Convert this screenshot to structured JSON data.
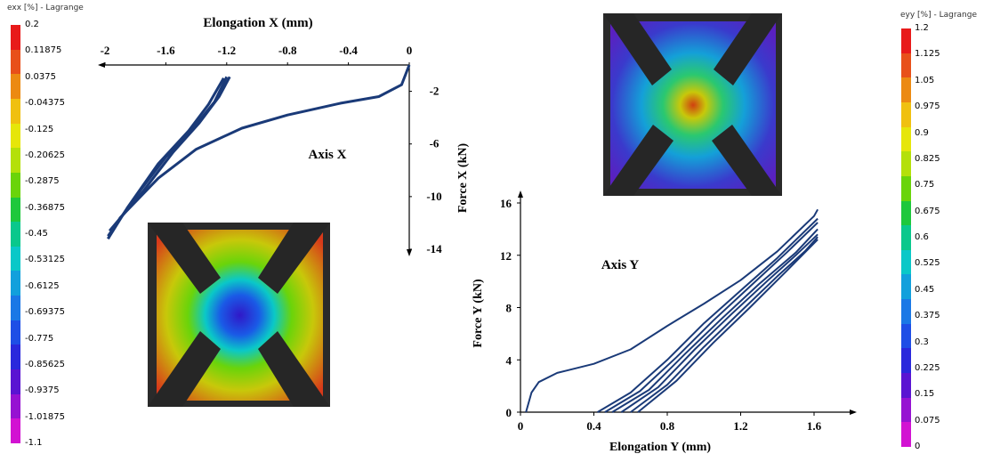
{
  "colorbar_left": {
    "title": "exx [%] - Lagrange",
    "ticks": [
      "0.2",
      "0.11875",
      "0.0375",
      "-0.04375",
      "-0.125",
      "-0.20625",
      "-0.2875",
      "-0.36875",
      "-0.45",
      "-0.53125",
      "-0.6125",
      "-0.69375",
      "-0.775",
      "-0.85625",
      "-0.9375",
      "-1.01875",
      "-1.1"
    ]
  },
  "colorbar_right": {
    "title": "eyy [%] - Lagrange",
    "ticks": [
      "1.2",
      "1.125",
      "1.05",
      "0.975",
      "0.9",
      "0.825",
      "0.75",
      "0.675",
      "0.6",
      "0.525",
      "0.45",
      "0.375",
      "0.3",
      "0.225",
      "0.15",
      "0.075",
      "0"
    ]
  },
  "colorbar_colors": [
    "#e81a1a",
    "#e8501a",
    "#ec8a12",
    "#f0c010",
    "#e6e60a",
    "#b4e00a",
    "#6ad40a",
    "#1ec83c",
    "#0ac88c",
    "#0ac8c8",
    "#12a0dc",
    "#1a78e6",
    "#1e4ee6",
    "#2a28dc",
    "#5a14d2",
    "#9612d2",
    "#d212d2"
  ],
  "chart_data": [
    {
      "type": "line",
      "title": "Axis X",
      "xlabel": "Elongation  X  (mm)",
      "ylabel": "Force X (kN)",
      "xlim": [
        -2,
        0
      ],
      "ylim": [
        -14,
        0
      ],
      "x_ticks": [
        "-2",
        "-1.6",
        "-1.2",
        "-0.8",
        "-0.4",
        "0"
      ],
      "y_ticks": [
        "-2",
        "-6",
        "-10",
        "-14"
      ],
      "series": [
        {
          "values": [
            [
              0,
              0
            ],
            [
              -0.05,
              -1.5
            ],
            [
              -0.2,
              -2.4
            ],
            [
              -0.45,
              -2.9
            ],
            [
              -0.8,
              -3.8
            ],
            [
              -1.1,
              -4.8
            ],
            [
              -1.4,
              -6.4
            ],
            [
              -1.65,
              -8.6
            ],
            [
              -1.9,
              -11.6
            ],
            [
              -1.98,
              -13.2
            ]
          ]
        },
        {
          "values": [
            [
              -1.98,
              -13.2
            ],
            [
              -1.85,
              -10.8
            ],
            [
              -1.65,
              -7.5
            ],
            [
              -1.45,
              -5.0
            ],
            [
              -1.32,
              -3.0
            ],
            [
              -1.22,
              -1.0
            ]
          ]
        },
        {
          "values": [
            [
              -1.98,
              -13.0
            ],
            [
              -1.8,
              -10.0
            ],
            [
              -1.6,
              -7.0
            ],
            [
              -1.42,
              -4.8
            ],
            [
              -1.28,
              -2.8
            ],
            [
              -1.2,
              -0.9
            ]
          ]
        },
        {
          "values": [
            [
              -1.97,
              -12.6
            ],
            [
              -1.75,
              -9.6
            ],
            [
              -1.55,
              -6.6
            ],
            [
              -1.38,
              -4.4
            ],
            [
              -1.25,
              -2.4
            ],
            [
              -1.18,
              -0.9
            ]
          ]
        }
      ]
    },
    {
      "type": "line",
      "title": "Axis Y",
      "xlabel": "Elongation  Y (mm)",
      "ylabel": "Force Y (kN)",
      "xlim": [
        0,
        1.8
      ],
      "ylim": [
        0,
        16
      ],
      "x_ticks": [
        "0",
        "0.4",
        "0.8",
        "1.2",
        "1.6"
      ],
      "y_ticks": [
        "0",
        "4",
        "8",
        "12",
        "16"
      ],
      "series": [
        {
          "values": [
            [
              0.03,
              0
            ],
            [
              0.06,
              1.5
            ],
            [
              0.1,
              2.3
            ],
            [
              0.2,
              3.0
            ],
            [
              0.4,
              3.7
            ],
            [
              0.6,
              4.8
            ],
            [
              0.8,
              6.6
            ],
            [
              1.0,
              8.3
            ],
            [
              1.2,
              10.1
            ],
            [
              1.4,
              12.3
            ],
            [
              1.6,
              15.0
            ],
            [
              1.62,
              15.5
            ]
          ]
        },
        {
          "values": [
            [
              0.42,
              0
            ],
            [
              0.6,
              1.5
            ],
            [
              0.8,
              4.0
            ],
            [
              1.0,
              6.8
            ],
            [
              1.2,
              9.3
            ],
            [
              1.4,
              11.8
            ],
            [
              1.62,
              14.8
            ]
          ]
        },
        {
          "values": [
            [
              0.46,
              0
            ],
            [
              0.65,
              1.6
            ],
            [
              0.85,
              4.2
            ],
            [
              1.05,
              7.0
            ],
            [
              1.25,
              9.6
            ],
            [
              1.45,
              12.2
            ],
            [
              1.62,
              14.5
            ]
          ]
        },
        {
          "values": [
            [
              0.5,
              0
            ],
            [
              0.7,
              1.7
            ],
            [
              0.9,
              4.5
            ],
            [
              1.1,
              7.2
            ],
            [
              1.3,
              9.8
            ],
            [
              1.5,
              12.2
            ],
            [
              1.62,
              14.0
            ]
          ]
        },
        {
          "values": [
            [
              0.55,
              0
            ],
            [
              0.75,
              1.9
            ],
            [
              0.95,
              4.8
            ],
            [
              1.15,
              7.5
            ],
            [
              1.35,
              10.1
            ],
            [
              1.5,
              12.0
            ],
            [
              1.62,
              13.6
            ]
          ]
        },
        {
          "values": [
            [
              0.6,
              0
            ],
            [
              0.8,
              2.1
            ],
            [
              1.0,
              5.0
            ],
            [
              1.2,
              7.7
            ],
            [
              1.4,
              10.4
            ],
            [
              1.55,
              12.3
            ],
            [
              1.62,
              13.4
            ]
          ]
        },
        {
          "values": [
            [
              0.64,
              0
            ],
            [
              0.85,
              2.4
            ],
            [
              1.05,
              5.3
            ],
            [
              1.25,
              8.0
            ],
            [
              1.45,
              10.8
            ],
            [
              1.62,
              13.2
            ]
          ]
        }
      ]
    }
  ]
}
